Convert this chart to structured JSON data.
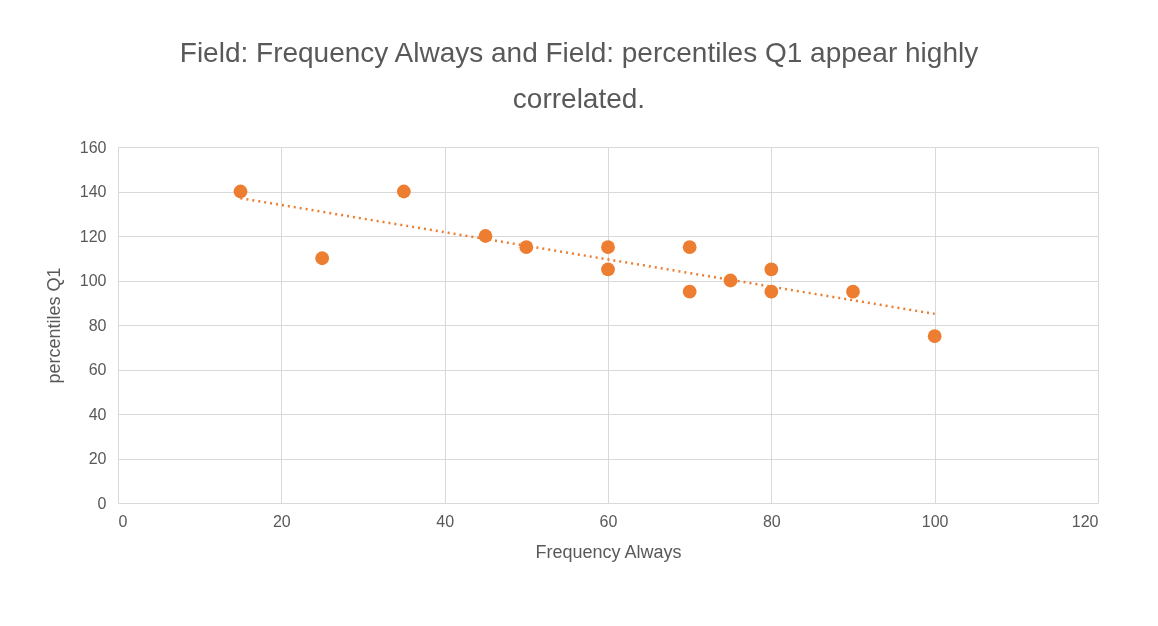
{
  "chart_data": {
    "type": "scatter",
    "title": "Field: Frequency Always and Field: percentiles Q1 appear highly correlated.",
    "xlabel": "Frequency Always",
    "ylabel": "percentiles Q1",
    "xlim": [
      0,
      120
    ],
    "xticks": [
      0,
      20,
      40,
      60,
      80,
      100,
      120
    ],
    "ylim": [
      0,
      160
    ],
    "yticks": [
      0,
      20,
      40,
      60,
      80,
      100,
      120,
      140,
      160
    ],
    "grid": true,
    "series": [
      {
        "marker": "circle",
        "color": "#ed7d31",
        "x": [
          15,
          25,
          35,
          45,
          50,
          60,
          60,
          70,
          70,
          75,
          80,
          80,
          90,
          100
        ],
        "values": [
          140,
          110,
          140,
          120,
          115,
          115,
          105,
          115,
          95,
          100,
          105,
          95,
          95,
          75
        ]
      },
      {
        "type": "line",
        "color": "#ed7d31",
        "line_style": "dotted",
        "x": [
          15,
          100
        ],
        "values": [
          137,
          85
        ]
      }
    ]
  }
}
